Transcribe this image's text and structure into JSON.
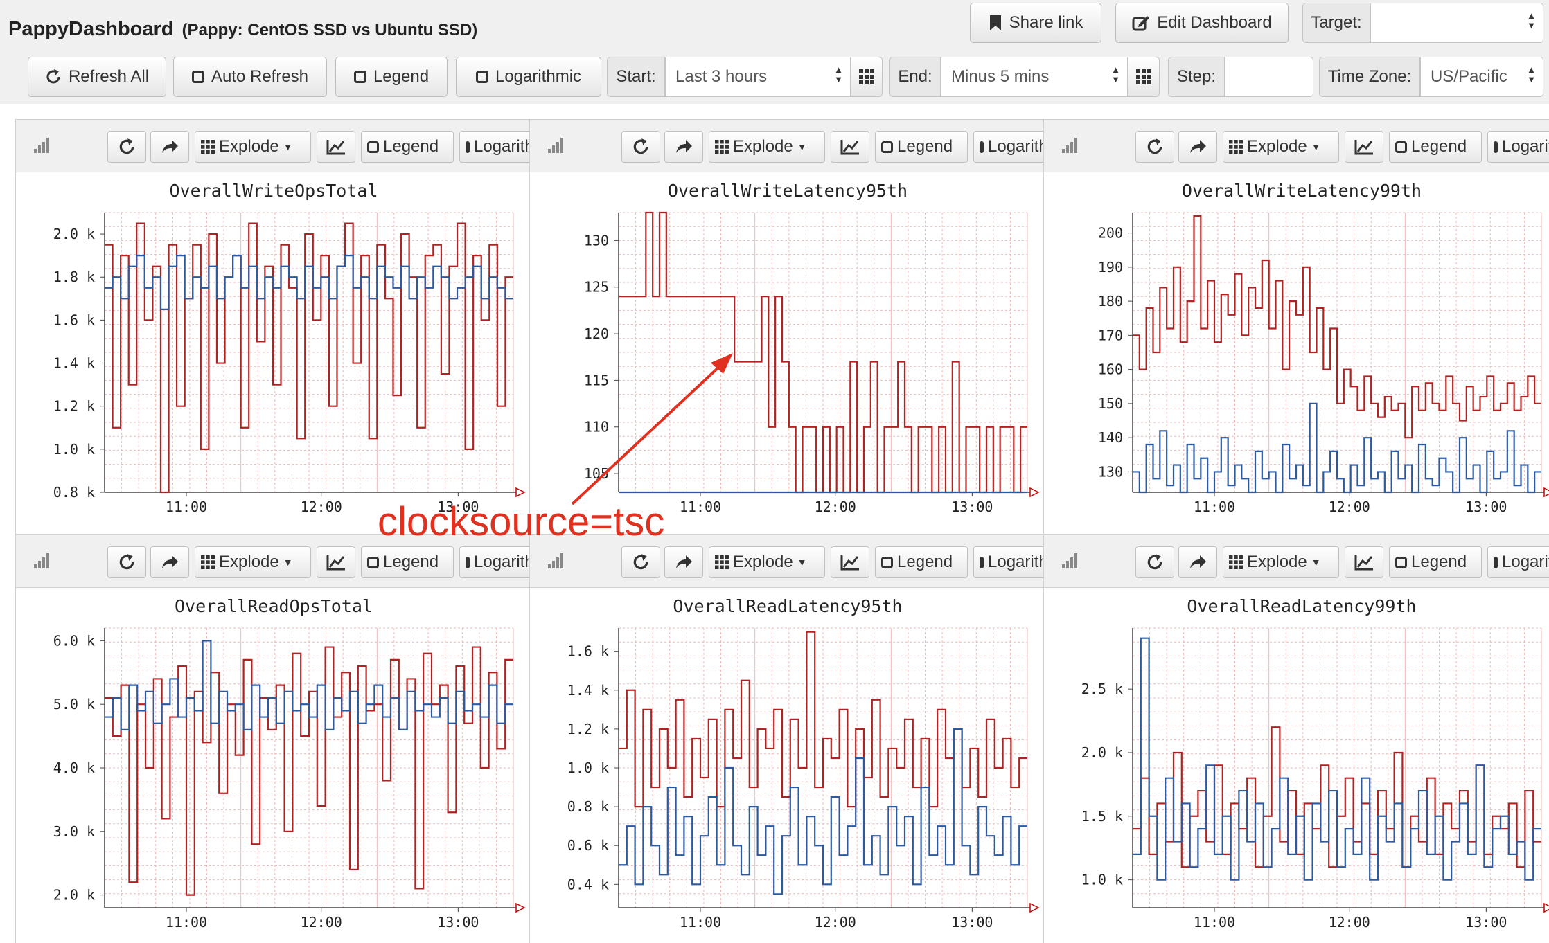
{
  "header": {
    "app_title": "PappyDashboard",
    "subtitle": "(Pappy: CentOS SSD vs Ubuntu SSD)",
    "share_link": "Share link",
    "edit_dashboard": "Edit Dashboard",
    "target_label": "Target:",
    "target_value": ""
  },
  "toolbar": {
    "refresh_all": "Refresh All",
    "auto_refresh": "Auto Refresh",
    "legend": "Legend",
    "logarithmic": "Logarithmic",
    "start_label": "Start:",
    "start_value": "Last 3 hours",
    "end_label": "End:",
    "end_value": "Minus 5 mins",
    "step_label": "Step:",
    "step_value": "",
    "timezone_label": "Time Zone:",
    "timezone_value": "US/Pacific"
  },
  "panel_toolbar": {
    "explode": "Explode",
    "legend": "Legend",
    "logarithmic": "Logarithmic"
  },
  "annotation": {
    "text": "clocksource=tsc",
    "color": "#e03020"
  },
  "colors": {
    "series_red": "#b22222",
    "series_blue": "#2c5aa0",
    "grid": "#f2b8b8"
  },
  "chart_data": [
    {
      "type": "line",
      "title": "OverallWriteOpsTotal",
      "ylim": [
        0.8,
        2.1
      ],
      "y_ticks": [
        0.8,
        1.0,
        1.2,
        1.4,
        1.6,
        1.8,
        2.0
      ],
      "y_tick_labels": [
        "0.8 k",
        "1.0 k",
        "1.2 k",
        "1.4 k",
        "1.6 k",
        "1.8 k",
        "2.0 k"
      ],
      "x_tick_labels": [
        "11:00",
        "12:00",
        "13:00"
      ],
      "series": [
        {
          "color": "#b22222",
          "values": [
            1.95,
            1.1,
            1.9,
            1.3,
            2.05,
            1.6,
            1.85,
            0.8,
            1.95,
            1.2,
            1.7,
            1.95,
            1.0,
            2.0,
            1.4,
            1.8,
            1.9,
            1.1,
            2.05,
            1.5,
            1.85,
            1.3,
            1.95,
            1.75,
            1.05,
            2.0,
            1.6,
            1.9,
            1.2,
            1.85,
            2.05,
            1.4,
            1.9,
            1.05,
            1.95,
            1.7,
            1.25,
            2.0,
            1.8,
            1.1,
            1.9,
            1.95,
            1.35,
            1.85,
            2.05,
            1.0,
            1.9,
            1.6,
            1.95,
            1.2,
            1.8
          ]
        },
        {
          "color": "#2c5aa0",
          "values": [
            1.75,
            1.8,
            1.7,
            1.85,
            1.9,
            1.75,
            1.8,
            1.65,
            1.85,
            1.9,
            1.7,
            1.8,
            1.75,
            1.85,
            1.7,
            1.8,
            1.9,
            1.75,
            1.85,
            1.7,
            1.8,
            1.75,
            1.85,
            1.8,
            1.7,
            1.85,
            1.75,
            1.8,
            1.7,
            1.85,
            1.9,
            1.75,
            1.8,
            1.7,
            1.85,
            1.8,
            1.75,
            1.85,
            1.7,
            1.8,
            1.75,
            1.85,
            1.8,
            1.7,
            1.75,
            1.8,
            1.85,
            1.7,
            1.8,
            1.75,
            1.7
          ]
        }
      ]
    },
    {
      "type": "line",
      "title": "OverallWriteLatency95th",
      "ylim": [
        103,
        133
      ],
      "y_ticks": [
        105,
        110,
        115,
        120,
        125,
        130
      ],
      "y_tick_labels": [
        "105",
        "110",
        "115",
        "120",
        "125",
        "130"
      ],
      "x_tick_labels": [
        "11:00",
        "12:00",
        "13:00"
      ],
      "series": [
        {
          "color": "#b22222",
          "values": [
            124,
            124,
            124,
            124,
            133,
            124,
            133,
            124,
            124,
            124,
            124,
            124,
            124,
            124,
            124,
            124,
            124,
            117,
            117,
            117,
            117,
            124,
            110,
            124,
            117,
            110,
            103,
            110,
            110,
            103,
            110,
            103,
            110,
            103,
            117,
            103,
            110,
            117,
            103,
            110,
            110,
            117,
            110,
            103,
            110,
            110,
            103,
            110,
            103,
            117,
            103,
            110,
            110,
            103,
            110,
            103,
            110,
            110,
            103,
            110
          ]
        },
        {
          "color": "#2c5aa0",
          "values": [
            103,
            103,
            103,
            103,
            103,
            103,
            103,
            103,
            103,
            103,
            103,
            103,
            103,
            103,
            103,
            103,
            103,
            103,
            103,
            103,
            103,
            103,
            103,
            103,
            103,
            103,
            103,
            103,
            103,
            103,
            103,
            103,
            103,
            103,
            103,
            103,
            103,
            103,
            103,
            103,
            103,
            103,
            103,
            103,
            103,
            103,
            103,
            103,
            103,
            103,
            103,
            103,
            103,
            103,
            103,
            103,
            103,
            103,
            103,
            103
          ]
        }
      ]
    },
    {
      "type": "line",
      "title": "OverallWriteLatency99th",
      "ylim": [
        124,
        206
      ],
      "y_ticks": [
        130,
        140,
        150,
        160,
        170,
        180,
        190,
        200
      ],
      "y_tick_labels": [
        "130",
        "140",
        "150",
        "160",
        "170",
        "180",
        "190",
        "200"
      ],
      "x_tick_labels": [
        "11:00",
        "12:00",
        "13:00"
      ],
      "series": [
        {
          "color": "#b22222",
          "values": [
            170,
            160,
            178,
            165,
            184,
            172,
            190,
            168,
            180,
            205,
            172,
            186,
            168,
            182,
            176,
            188,
            170,
            184,
            178,
            192,
            172,
            186,
            160,
            180,
            176,
            190,
            165,
            178,
            160,
            172,
            150,
            160,
            155,
            148,
            158,
            150,
            146,
            152,
            148,
            150,
            140,
            155,
            148,
            156,
            150,
            148,
            158,
            150,
            145,
            155,
            148,
            152,
            158,
            148,
            150,
            156,
            148,
            152,
            158,
            150
          ]
        },
        {
          "color": "#2c5aa0",
          "values": [
            130,
            124,
            138,
            128,
            142,
            126,
            132,
            124,
            138,
            128,
            134,
            124,
            130,
            140,
            126,
            132,
            128,
            124,
            136,
            128,
            130,
            124,
            138,
            128,
            132,
            126,
            150,
            124,
            130,
            136,
            128,
            124,
            132,
            126,
            140,
            128,
            130,
            124,
            136,
            128,
            132,
            124,
            138,
            128,
            126,
            134,
            130,
            124,
            140,
            128,
            132,
            124,
            136,
            128,
            130,
            142,
            126,
            132,
            124,
            130
          ]
        }
      ]
    },
    {
      "type": "line",
      "title": "OverallReadOpsTotal",
      "ylim": [
        1.8,
        6.2
      ],
      "y_ticks": [
        2.0,
        3.0,
        4.0,
        5.0,
        6.0
      ],
      "y_tick_labels": [
        "2.0 k",
        "3.0 k",
        "4.0 k",
        "5.0 k",
        "6.0 k"
      ],
      "x_tick_labels": [
        "11:00",
        "12:00",
        "13:00"
      ],
      "series": [
        {
          "color": "#b22222",
          "values": [
            5.1,
            4.5,
            5.3,
            2.2,
            5.0,
            4.0,
            5.4,
            3.2,
            4.8,
            5.6,
            2.0,
            5.2,
            4.4,
            5.5,
            3.6,
            5.0,
            4.2,
            5.7,
            2.8,
            5.1,
            4.6,
            5.3,
            3.0,
            5.8,
            4.5,
            5.2,
            3.4,
            5.9,
            4.8,
            5.5,
            2.4,
            5.6,
            4.9,
            5.0,
            3.8,
            5.7,
            4.6,
            5.4,
            2.1,
            5.8,
            5.0,
            5.3,
            3.3,
            5.6,
            4.7,
            5.9,
            4.0,
            5.5,
            4.3,
            5.7
          ]
        },
        {
          "color": "#2c5aa0",
          "values": [
            4.8,
            5.1,
            4.6,
            5.3,
            4.9,
            5.2,
            4.7,
            5.0,
            5.4,
            4.8,
            5.1,
            4.9,
            6.0,
            4.7,
            5.2,
            4.9,
            5.0,
            4.6,
            5.3,
            4.8,
            5.1,
            4.7,
            5.2,
            4.9,
            5.0,
            4.8,
            5.3,
            4.6,
            5.1,
            4.9,
            5.2,
            4.7,
            5.0,
            5.3,
            4.8,
            5.1,
            4.6,
            5.2,
            4.9,
            5.0,
            4.8,
            5.1,
            4.7,
            5.2,
            4.9,
            5.0,
            4.8,
            5.3,
            4.7,
            5.0
          ]
        }
      ]
    },
    {
      "type": "line",
      "title": "OverallReadLatency95th",
      "ylim": [
        0.28,
        1.72
      ],
      "y_ticks": [
        0.4,
        0.6,
        0.8,
        1.0,
        1.2,
        1.4,
        1.6
      ],
      "y_tick_labels": [
        "0.4 k",
        "0.6 k",
        "0.8 k",
        "1.0 k",
        "1.2 k",
        "1.4 k",
        "1.6 k"
      ],
      "x_tick_labels": [
        "11:00",
        "12:00",
        "13:00"
      ],
      "series": [
        {
          "color": "#b22222",
          "values": [
            1.1,
            1.4,
            0.8,
            1.3,
            0.9,
            1.2,
            1.0,
            1.35,
            0.85,
            1.15,
            0.95,
            1.25,
            0.8,
            1.3,
            1.05,
            1.45,
            0.9,
            1.2,
            1.1,
            1.3,
            0.85,
            1.25,
            1.0,
            1.7,
            0.9,
            1.15,
            1.05,
            1.3,
            0.8,
            1.2,
            0.95,
            1.35,
            0.85,
            1.1,
            1.0,
            1.25,
            0.9,
            1.15,
            0.8,
            1.3,
            1.05,
            1.2,
            0.9,
            1.1,
            0.85,
            1.25,
            1.0,
            1.15,
            0.9,
            1.05
          ]
        },
        {
          "color": "#2c5aa0",
          "values": [
            0.5,
            0.7,
            0.4,
            0.8,
            0.6,
            0.45,
            0.9,
            0.55,
            0.75,
            0.4,
            0.65,
            0.85,
            0.5,
            1.0,
            0.6,
            0.45,
            0.8,
            0.55,
            0.7,
            0.35,
            0.65,
            0.9,
            0.5,
            0.75,
            0.6,
            0.4,
            0.85,
            0.55,
            0.7,
            1.05,
            0.5,
            0.65,
            0.45,
            0.8,
            0.6,
            0.75,
            0.4,
            0.9,
            0.55,
            0.7,
            0.5,
            1.2,
            0.6,
            0.45,
            0.8,
            0.65,
            0.55,
            0.75,
            0.5,
            0.7
          ]
        }
      ]
    },
    {
      "type": "line",
      "title": "OverallReadLatency99th",
      "ylim": [
        0.78,
        2.98
      ],
      "y_ticks": [
        1.0,
        1.5,
        2.0,
        2.5
      ],
      "y_tick_labels": [
        "1.0 k",
        "1.5 k",
        "2.0 k",
        "2.5 k"
      ],
      "x_tick_labels": [
        "11:00",
        "12:00",
        "13:00"
      ],
      "series": [
        {
          "color": "#b22222",
          "values": [
            1.4,
            1.8,
            1.2,
            1.6,
            1.3,
            2.0,
            1.1,
            1.5,
            1.7,
            1.3,
            1.9,
            1.2,
            1.6,
            1.4,
            1.8,
            1.1,
            1.5,
            2.2,
            1.3,
            1.7,
            1.2,
            1.6,
            1.4,
            1.9,
            1.1,
            1.5,
            1.8,
            1.3,
            1.6,
            1.2,
            1.7,
            1.4,
            2.0,
            1.1,
            1.5,
            1.3,
            1.8,
            1.2,
            1.6,
            1.4,
            1.7,
            1.3,
            1.9,
            1.2,
            1.5,
            1.4,
            1.6,
            1.1,
            1.7,
            1.3
          ]
        },
        {
          "color": "#2c5aa0",
          "values": [
            1.2,
            2.9,
            1.5,
            1.0,
            1.8,
            1.3,
            1.6,
            1.1,
            1.4,
            1.9,
            1.2,
            1.5,
            1.0,
            1.7,
            1.3,
            1.6,
            1.1,
            1.4,
            1.8,
            1.2,
            1.5,
            1.0,
            1.6,
            1.3,
            1.7,
            1.1,
            1.4,
            1.2,
            1.8,
            1.0,
            1.5,
            1.3,
            1.6,
            1.1,
            1.4,
            1.7,
            1.2,
            1.5,
            1.0,
            1.3,
            1.6,
            1.2,
            1.9,
            1.1,
            1.4,
            1.5,
            1.2,
            1.3,
            1.0,
            1.4
          ]
        }
      ]
    }
  ]
}
